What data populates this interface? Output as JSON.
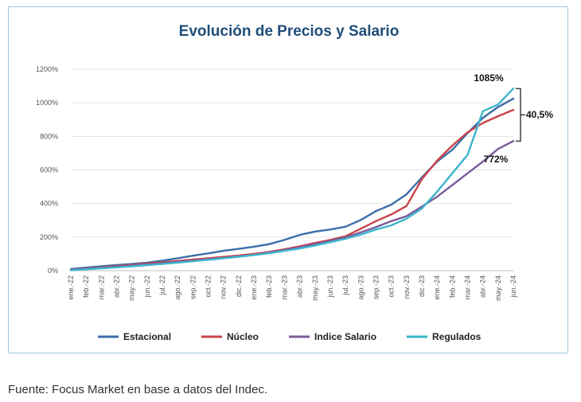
{
  "chart_data": {
    "type": "line",
    "title": "Evolución de Precios y Salario",
    "xlabel": "",
    "ylabel": "",
    "ylim": [
      0,
      1200
    ],
    "y_ticks": [
      "0%",
      "200%",
      "400%",
      "600%",
      "800%",
      "1000%",
      "1200%"
    ],
    "categories": [
      "ene.-22",
      "feb.-22",
      "mar.-22",
      "abr.-22",
      "may.-22",
      "jun.-22",
      "jul.-22",
      "ago.-22",
      "sep.-22",
      "oct.-22",
      "nov.-22",
      "dic.-22",
      "ene.-23",
      "feb.-23",
      "mar.-23",
      "abr.-23",
      "may.-23",
      "jun.-23",
      "jul.-23",
      "ago.-23",
      "sep.-23",
      "oct.-23",
      "nov.-23",
      "dic.-23",
      "ene.-24",
      "feb.-24",
      "mar.-24",
      "abr.-24",
      "may.-24",
      "jun.-24"
    ],
    "series": [
      {
        "name": "Estacional",
        "color": "#3b6ea8",
        "values": [
          10,
          18,
          26,
          33,
          40,
          48,
          60,
          74,
          89,
          103,
          118,
          130,
          143,
          158,
          183,
          213,
          233,
          245,
          262,
          302,
          355,
          393,
          455,
          555,
          650,
          720,
          820,
          910,
          975,
          1025
        ]
      },
      {
        "name": "Núcleo",
        "color": "#c9444a",
        "values": [
          5,
          12,
          20,
          27,
          34,
          42,
          50,
          58,
          66,
          74,
          82,
          90,
          100,
          112,
          127,
          145,
          165,
          183,
          205,
          250,
          295,
          335,
          385,
          545,
          655,
          745,
          825,
          880,
          920,
          958
        ]
      },
      {
        "name": "Indice Salario",
        "color": "#7a5c9a",
        "values": [
          5,
          11,
          17,
          23,
          30,
          37,
          44,
          52,
          60,
          68,
          76,
          85,
          95,
          108,
          122,
          140,
          158,
          178,
          198,
          228,
          260,
          295,
          325,
          382,
          440,
          510,
          580,
          650,
          725,
          772
        ]
      },
      {
        "name": "Regulados",
        "color": "#3bb5cc",
        "values": [
          3,
          8,
          14,
          20,
          26,
          33,
          40,
          48,
          56,
          65,
          74,
          83,
          93,
          104,
          118,
          132,
          150,
          170,
          190,
          215,
          245,
          270,
          310,
          370,
          470,
          580,
          690,
          950,
          990,
          1085
        ]
      }
    ],
    "legend_position": "bottom",
    "annotations": {
      "max_label": "1085%",
      "salary_label": "772%",
      "gap_label": "40,5%"
    }
  },
  "caption": "Fuente: Focus Market en base a datos del Indec."
}
